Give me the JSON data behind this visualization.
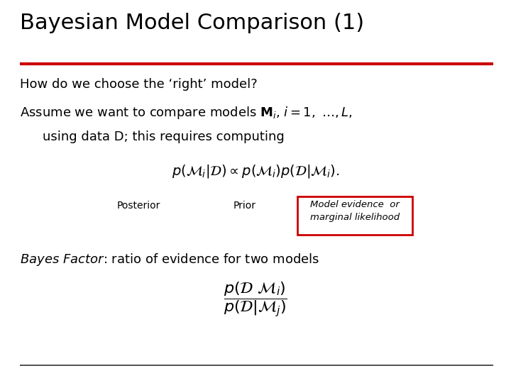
{
  "title": "Bayesian Model Comparison (1)",
  "title_fontsize": 22,
  "title_color": "#000000",
  "title_rule_color": "#cc0000",
  "bg_color": "#ffffff",
  "line1": "How do we choose the ‘right’ model?",
  "line2a": "Assume we want to compare models $\\mathbf{M}_i$, $i{=}1,\\ \\ldots,L$,",
  "line2b": "using data D; this requires computing",
  "formula1": "$p(\\mathcal{M}_i|\\mathcal{D}) \\propto p(\\mathcal{M}_i)p(\\mathcal{D}|\\mathcal{M}_i).$",
  "label_posterior": "Posterior",
  "label_prior": "Prior",
  "label_evidence": "Model evidence  or\nmarginal likelihood",
  "bayes_factor_line1": "Bayes Factor",
  "bayes_factor_line2": ": ratio of evidence for two models",
  "formula2": "$\\dfrac{p(\\mathcal{D}\\ \\mathcal{M}_i)}{p(\\mathcal{D}|\\mathcal{M}_j)}$",
  "bottom_rule_color": "#333333",
  "box_color": "#cc0000",
  "text_color": "#000000",
  "text_fontsize": 13,
  "formula_fontsize": 14
}
